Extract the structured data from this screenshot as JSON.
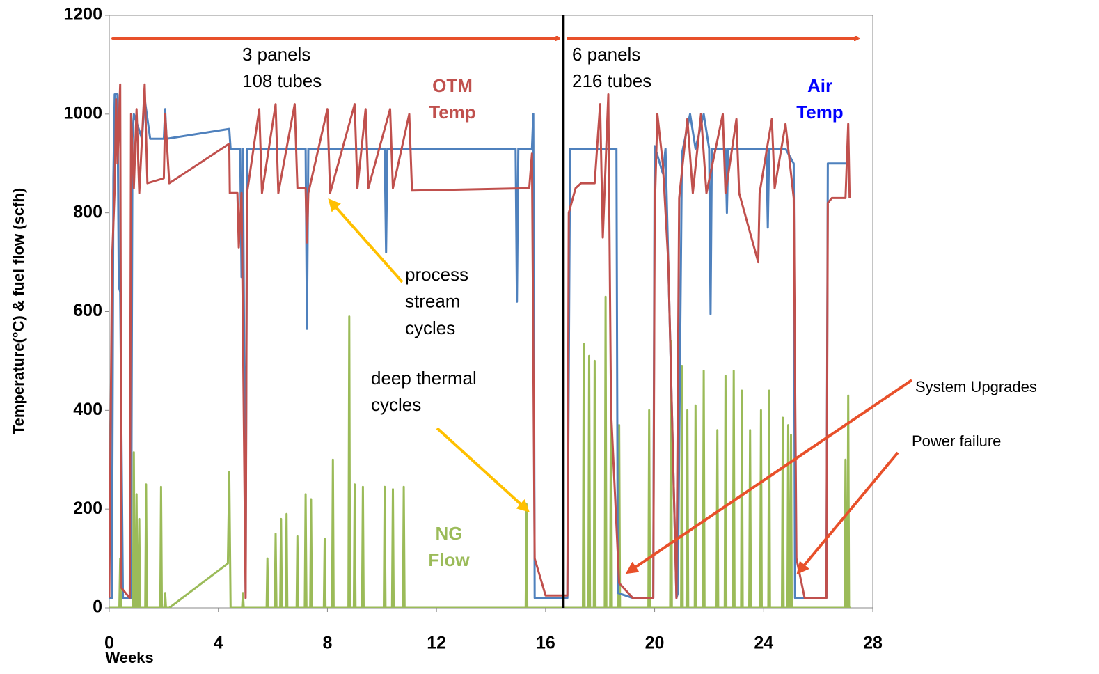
{
  "chart_data": {
    "type": "line",
    "x_label": "Weeks",
    "y_label": "Temperature(°C) & fuel flow (scfh)",
    "xlim": [
      0,
      28
    ],
    "xticks": [
      0,
      4,
      8,
      12,
      16,
      20,
      24,
      28
    ],
    "ylim": [
      0,
      1200
    ],
    "yticks": [
      0,
      200,
      400,
      600,
      800,
      1000,
      1200
    ],
    "vlines": [
      16.65
    ],
    "series": [
      {
        "name": "Air Temp",
        "color": "#4f81bd",
        "x": [
          0,
          0.1,
          0.15,
          0.2,
          0.3,
          0.35,
          0.4,
          0.5,
          0.8,
          0.85,
          0.9,
          1.2,
          1.3,
          1.5,
          2,
          2.05,
          2.1,
          4.4,
          4.45,
          4.8,
          4.85,
          4.9,
          5.0,
          5.05,
          7.2,
          7.25,
          7.3,
          10.1,
          10.15,
          10.2,
          14.9,
          14.95,
          15.0,
          15.5,
          15.55,
          15.6,
          16.7,
          16.8,
          16.9,
          18.6,
          18.65,
          19.2,
          19.95,
          20,
          20.3,
          20.4,
          20.8,
          20.85,
          21.0,
          21.3,
          21.5,
          21.8,
          22.0,
          22.05,
          22.1,
          22.6,
          22.65,
          22.7,
          24.1,
          24.15,
          24.2,
          24.8,
          25.1,
          25.15,
          26.3,
          26.35,
          27.1
        ],
        "values": [
          20,
          20,
          870,
          1040,
          1040,
          650,
          640,
          20,
          20,
          950,
          1000,
          950,
          1030,
          950,
          950,
          1010,
          950,
          970,
          930,
          930,
          670,
          930,
          30,
          930,
          930,
          565,
          930,
          930,
          720,
          930,
          930,
          620,
          930,
          930,
          1000,
          20,
          20,
          20,
          930,
          930,
          30,
          20,
          20,
          935,
          880,
          930,
          20,
          30,
          920,
          1000,
          930,
          1000,
          930,
          595,
          930,
          930,
          800,
          930,
          930,
          770,
          930,
          930,
          900,
          20,
          20,
          900,
          900
        ]
      },
      {
        "name": "OTM Temp",
        "color": "#c0504d",
        "x": [
          0,
          0.1,
          0.2,
          0.25,
          0.3,
          0.4,
          0.45,
          0.75,
          0.8,
          0.9,
          1.0,
          1.1,
          1.3,
          1.4,
          2,
          2.05,
          2.2,
          4.4,
          4.42,
          4.7,
          4.75,
          4.85,
          5.0,
          5.05,
          5.5,
          5.6,
          6.1,
          6.2,
          6.8,
          6.9,
          7.2,
          7.25,
          7.3,
          8.0,
          8.1,
          9.0,
          9.1,
          9.4,
          9.5,
          10.3,
          10.4,
          11.0,
          11.1,
          15.4,
          15.5,
          15.6,
          16.0,
          16.8,
          16.85,
          17.1,
          17.3,
          17.8,
          18.0,
          18.1,
          18.3,
          18.4,
          18.7,
          19.2,
          19.95,
          20.0,
          20.1,
          20.3,
          20.5,
          20.8,
          20.9,
          21.2,
          21.4,
          21.7,
          21.9,
          22.5,
          22.6,
          23.0,
          23.1,
          23.8,
          23.85,
          24.3,
          24.4,
          24.8,
          25.1,
          25.2,
          25.5,
          26.3,
          26.35,
          26.5,
          27.0,
          27.1,
          27.15
        ],
        "values": [
          20,
          700,
          850,
          1030,
          900,
          1060,
          40,
          20,
          1000,
          850,
          1010,
          840,
          1060,
          860,
          870,
          1000,
          860,
          940,
          840,
          840,
          730,
          840,
          20,
          840,
          1010,
          840,
          1020,
          840,
          1020,
          850,
          850,
          740,
          840,
          1010,
          840,
          1020,
          850,
          1010,
          850,
          1010,
          850,
          1000,
          845,
          850,
          920,
          100,
          25,
          25,
          800,
          850,
          860,
          860,
          1020,
          750,
          1040,
          400,
          50,
          20,
          20,
          800,
          1000,
          900,
          700,
          20,
          830,
          990,
          840,
          1000,
          840,
          1000,
          840,
          990,
          840,
          700,
          840,
          990,
          850,
          980,
          830,
          100,
          20,
          20,
          820,
          830,
          830,
          980,
          830
        ]
      },
      {
        "name": "NG Flow",
        "color": "#9bbb59",
        "x": [
          0,
          0.37,
          0.4,
          0.43,
          0.87,
          0.9,
          0.93,
          0.97,
          1.0,
          1.03,
          1.07,
          1.1,
          1.13,
          1.32,
          1.35,
          1.38,
          1.87,
          1.9,
          1.93,
          2.02,
          2.05,
          2.08,
          2.2,
          4.35,
          4.4,
          4.45,
          4.87,
          4.9,
          4.93,
          5.77,
          5.8,
          5.83,
          6.07,
          6.1,
          6.13,
          6.27,
          6.3,
          6.33,
          6.47,
          6.5,
          6.53,
          6.87,
          6.9,
          6.93,
          7.17,
          7.2,
          7.23,
          7.37,
          7.4,
          7.43,
          7.87,
          7.9,
          7.93,
          8.17,
          8.2,
          8.23,
          8.77,
          8.8,
          8.83,
          8.97,
          9.0,
          9.03,
          9.27,
          9.3,
          9.33,
          10.07,
          10.1,
          10.13,
          10.37,
          10.4,
          10.43,
          10.77,
          10.8,
          10.83,
          15.27,
          15.3,
          15.33,
          17.37,
          17.4,
          17.43,
          17.57,
          17.6,
          17.63,
          17.77,
          17.8,
          17.83,
          18.17,
          18.2,
          18.23,
          18.37,
          18.4,
          18.43,
          18.67,
          18.7,
          18.73,
          19.77,
          19.8,
          19.83,
          20.57,
          20.6,
          20.63,
          20.97,
          21.0,
          21.03,
          21.17,
          21.2,
          21.23,
          21.47,
          21.5,
          21.53,
          21.77,
          21.8,
          21.83,
          22.27,
          22.3,
          22.33,
          22.57,
          22.6,
          22.63,
          22.87,
          22.9,
          22.93,
          23.17,
          23.2,
          23.23,
          23.47,
          23.5,
          23.53,
          23.87,
          23.9,
          23.93,
          24.17,
          24.2,
          24.23,
          24.67,
          24.7,
          24.73,
          24.87,
          24.9,
          24.93,
          24.97,
          25.0,
          25.03,
          26.97,
          27.0,
          27.03,
          27.07,
          27.1,
          27.13,
          27.2
        ],
        "values": [
          0,
          0,
          100,
          0,
          0,
          315,
          0,
          0,
          230,
          0,
          0,
          180,
          0,
          0,
          250,
          0,
          0,
          245,
          0,
          0,
          30,
          0,
          0,
          90,
          275,
          0,
          0,
          30,
          0,
          0,
          100,
          0,
          0,
          150,
          0,
          0,
          180,
          0,
          0,
          190,
          0,
          0,
          145,
          0,
          0,
          230,
          0,
          0,
          220,
          0,
          0,
          140,
          0,
          0,
          300,
          0,
          0,
          590,
          0,
          0,
          250,
          0,
          0,
          245,
          0,
          0,
          245,
          0,
          0,
          240,
          0,
          0,
          245,
          0,
          0,
          210,
          0,
          0,
          535,
          0,
          0,
          510,
          0,
          0,
          500,
          0,
          0,
          630,
          0,
          0,
          480,
          0,
          0,
          370,
          0,
          0,
          400,
          0,
          0,
          540,
          0,
          0,
          490,
          0,
          0,
          400,
          0,
          0,
          410,
          0,
          0,
          480,
          0,
          0,
          360,
          0,
          0,
          470,
          0,
          0,
          480,
          0,
          0,
          440,
          0,
          0,
          360,
          0,
          0,
          400,
          0,
          0,
          440,
          0,
          0,
          385,
          0,
          0,
          370,
          0,
          0,
          350,
          0,
          0,
          300,
          0,
          0,
          430,
          0,
          0
        ]
      }
    ],
    "annotations": [
      {
        "lines": [
          "3 panels",
          "108 tubes"
        ],
        "color": "#000000"
      },
      {
        "lines": [
          "6 panels",
          "216 tubes"
        ],
        "color": "#000000"
      },
      {
        "lines": [
          "OTM",
          "Temp"
        ],
        "color": "#c0504d"
      },
      {
        "lines": [
          "Air",
          "Temp"
        ],
        "color": "#0000ff"
      },
      {
        "lines": [
          "NG",
          "Flow"
        ],
        "color": "#9bbb59"
      },
      {
        "lines": [
          "process",
          "stream",
          "cycles"
        ],
        "color": "#000000"
      },
      {
        "lines": [
          "deep thermal",
          "cycles"
        ],
        "color": "#000000"
      },
      {
        "lines": [
          "System  Upgrades"
        ],
        "color": "#000000"
      },
      {
        "lines": [
          "Power failure"
        ],
        "color": "#000000"
      }
    ]
  }
}
